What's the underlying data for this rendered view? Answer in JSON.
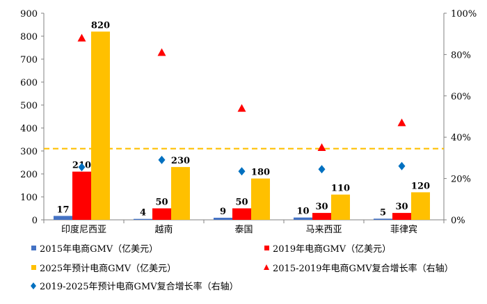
{
  "chart_data": {
    "type": "bar",
    "categories": [
      "印度尼西亚",
      "越南",
      "泰国",
      "马来西亚",
      "菲律宾"
    ],
    "bar_series": [
      {
        "name": "2015年电商GMV（亿美元）",
        "color": "#4472C4",
        "values": [
          17,
          4,
          9,
          10,
          5
        ],
        "labels": [
          "17",
          "4",
          "9",
          "10",
          "5"
        ]
      },
      {
        "name": "2019年电商GMV（亿美元）",
        "color": "#FF0000",
        "values": [
          210,
          50,
          50,
          30,
          30
        ],
        "labels": [
          "210",
          "50",
          "50",
          "30",
          "30"
        ]
      },
      {
        "name": "2025年预计电商GMV（亿美元）",
        "color": "#FFC000",
        "values": [
          820,
          230,
          180,
          110,
          120
        ],
        "labels": [
          "820",
          "230",
          "180",
          "110",
          "120"
        ]
      }
    ],
    "marker_series": [
      {
        "name": "2015-2019年电商GMV复合增长率（右轴）",
        "marker": "triangle",
        "color": "#FF0000",
        "values": [
          0.88,
          0.81,
          0.54,
          0.35,
          0.47
        ]
      },
      {
        "name": "2019-2025年预计电商GMV复合增长率（右轴）",
        "marker": "diamond",
        "color": "#0070C0",
        "values": [
          0.255,
          0.29,
          0.235,
          0.245,
          0.26
        ]
      }
    ],
    "reference_line": {
      "value": 310,
      "color": "#FFC000",
      "style": "dashed"
    },
    "y_left": {
      "ticks": [
        "0",
        "100",
        "200",
        "300",
        "400",
        "500",
        "600",
        "700",
        "800",
        "900"
      ],
      "ylim": [
        0,
        900
      ]
    },
    "y_right": {
      "ticks": [
        "0%",
        "20%",
        "40%",
        "60%",
        "80%",
        "100%"
      ],
      "ylim": [
        0,
        1
      ]
    },
    "grid": false,
    "legend_position": "bottom"
  }
}
